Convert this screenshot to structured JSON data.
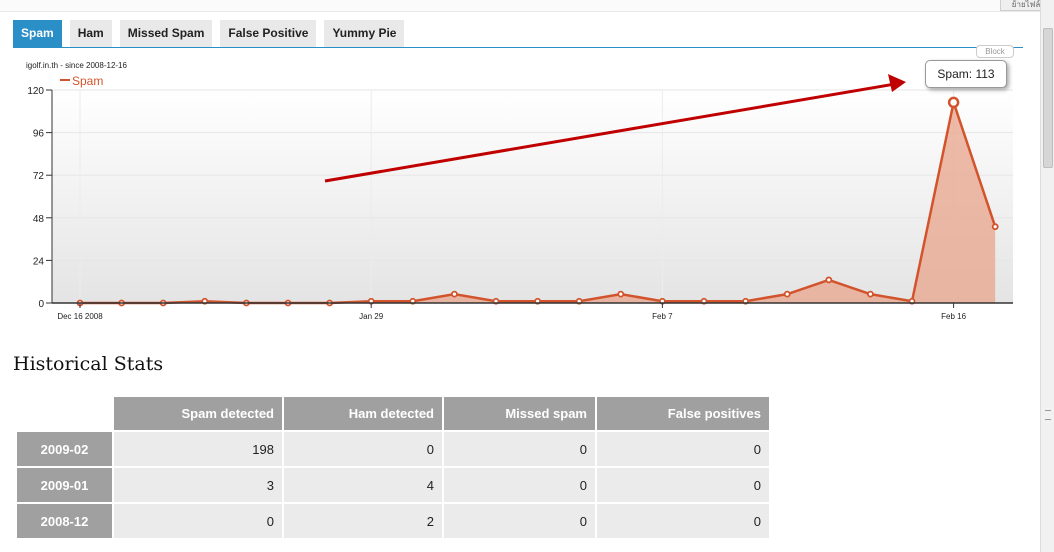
{
  "top_right_label": "ย้ายไฟล์",
  "tabs": [
    {
      "label": "Spam",
      "active": true
    },
    {
      "label": "Ham",
      "active": false
    },
    {
      "label": "Missed Spam",
      "active": false
    },
    {
      "label": "False Positive",
      "active": false
    },
    {
      "label": "Yummy Pie",
      "active": false
    }
  ],
  "block_label": "Block",
  "tooltip": "Spam: 113",
  "chart_data": {
    "type": "area",
    "subtitle": "igolf.in.th - since 2008-12-16",
    "series": [
      {
        "name": "Spam",
        "color": "#d2542c",
        "values": [
          0,
          0,
          0,
          1,
          0,
          0,
          0,
          1,
          1,
          5,
          1,
          1,
          1,
          5,
          1,
          1,
          1,
          5,
          13,
          5,
          1,
          113,
          43
        ]
      }
    ],
    "x_tick_labels": [
      "Dec 16 2008",
      "Jan 29",
      "Feb 7",
      "Feb 16"
    ],
    "x_tick_index": [
      0,
      7,
      14,
      21
    ],
    "y_ticks": [
      0,
      24,
      48,
      72,
      96,
      120
    ],
    "ylim": [
      0,
      120
    ],
    "legend": "top-left",
    "highlight_index": 21
  },
  "historical": {
    "title": "Historical Stats",
    "columns": [
      "Spam detected",
      "Ham detected",
      "Missed spam",
      "False positives"
    ],
    "rows": [
      {
        "label": "2009-02",
        "values": [
          "198",
          "0",
          "0",
          "0"
        ]
      },
      {
        "label": "2009-01",
        "values": [
          "3",
          "4",
          "0",
          "0"
        ]
      },
      {
        "label": "2008-12",
        "values": [
          "0",
          "2",
          "0",
          "0"
        ]
      }
    ]
  }
}
